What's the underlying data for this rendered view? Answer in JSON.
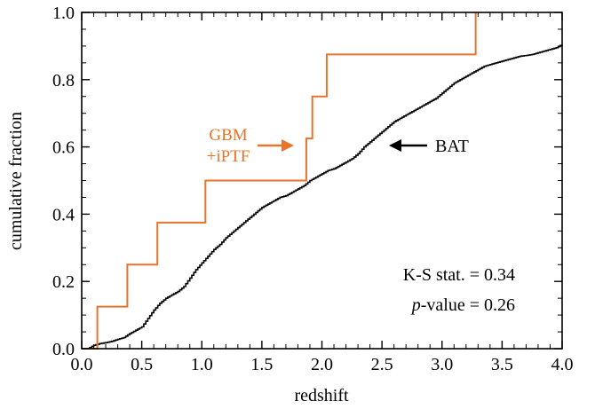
{
  "chart_data": {
    "type": "line",
    "title": "",
    "xlabel": "redshift",
    "ylabel": "cumulative fraction",
    "xlim": [
      0.0,
      4.0
    ],
    "ylim": [
      0.0,
      1.0
    ],
    "x_ticks": [
      "0.0",
      "0.5",
      "1.0",
      "1.5",
      "2.0",
      "2.5",
      "3.0",
      "3.5",
      "4.0"
    ],
    "y_ticks": [
      "0.0",
      "0.2",
      "0.4",
      "0.6",
      "0.8",
      "1.0"
    ],
    "grid": false,
    "series": [
      {
        "name": "BAT",
        "color": "#000000",
        "style": "step",
        "points": [
          [
            0.05,
            0.0
          ],
          [
            0.1,
            0.01
          ],
          [
            0.15,
            0.015
          ],
          [
            0.2,
            0.018
          ],
          [
            0.25,
            0.022
          ],
          [
            0.3,
            0.028
          ],
          [
            0.35,
            0.033
          ],
          [
            0.4,
            0.045
          ],
          [
            0.45,
            0.055
          ],
          [
            0.5,
            0.065
          ],
          [
            0.55,
            0.09
          ],
          [
            0.6,
            0.115
          ],
          [
            0.65,
            0.135
          ],
          [
            0.7,
            0.15
          ],
          [
            0.75,
            0.16
          ],
          [
            0.8,
            0.17
          ],
          [
            0.85,
            0.185
          ],
          [
            0.9,
            0.21
          ],
          [
            0.95,
            0.235
          ],
          [
            1.0,
            0.255
          ],
          [
            1.05,
            0.275
          ],
          [
            1.1,
            0.295
          ],
          [
            1.15,
            0.31
          ],
          [
            1.2,
            0.33
          ],
          [
            1.25,
            0.345
          ],
          [
            1.3,
            0.36
          ],
          [
            1.35,
            0.375
          ],
          [
            1.4,
            0.39
          ],
          [
            1.45,
            0.405
          ],
          [
            1.5,
            0.42
          ],
          [
            1.55,
            0.43
          ],
          [
            1.6,
            0.44
          ],
          [
            1.65,
            0.45
          ],
          [
            1.7,
            0.455
          ],
          [
            1.75,
            0.465
          ],
          [
            1.8,
            0.475
          ],
          [
            1.85,
            0.485
          ],
          [
            1.9,
            0.5
          ],
          [
            1.95,
            0.51
          ],
          [
            2.0,
            0.52
          ],
          [
            2.05,
            0.53
          ],
          [
            2.1,
            0.535
          ],
          [
            2.15,
            0.545
          ],
          [
            2.2,
            0.555
          ],
          [
            2.25,
            0.565
          ],
          [
            2.3,
            0.58
          ],
          [
            2.35,
            0.6
          ],
          [
            2.4,
            0.615
          ],
          [
            2.45,
            0.63
          ],
          [
            2.5,
            0.645
          ],
          [
            2.55,
            0.66
          ],
          [
            2.6,
            0.675
          ],
          [
            2.65,
            0.685
          ],
          [
            2.7,
            0.695
          ],
          [
            2.75,
            0.705
          ],
          [
            2.8,
            0.715
          ],
          [
            2.85,
            0.725
          ],
          [
            2.9,
            0.735
          ],
          [
            2.95,
            0.745
          ],
          [
            3.0,
            0.76
          ],
          [
            3.05,
            0.775
          ],
          [
            3.1,
            0.79
          ],
          [
            3.15,
            0.8
          ],
          [
            3.2,
            0.81
          ],
          [
            3.25,
            0.82
          ],
          [
            3.3,
            0.83
          ],
          [
            3.35,
            0.84
          ],
          [
            3.4,
            0.845
          ],
          [
            3.45,
            0.85
          ],
          [
            3.5,
            0.855
          ],
          [
            3.55,
            0.86
          ],
          [
            3.6,
            0.865
          ],
          [
            3.65,
            0.87
          ],
          [
            3.7,
            0.872
          ],
          [
            3.75,
            0.875
          ],
          [
            3.8,
            0.88
          ],
          [
            3.85,
            0.885
          ],
          [
            3.9,
            0.89
          ],
          [
            3.95,
            0.895
          ],
          [
            4.0,
            0.905
          ]
        ]
      },
      {
        "name": "GBM +iPTF",
        "color": "#e8732a",
        "style": "step",
        "points": [
          [
            0.0,
            0.0
          ],
          [
            0.13,
            0.0
          ],
          [
            0.13,
            0.125
          ],
          [
            0.38,
            0.125
          ],
          [
            0.38,
            0.25
          ],
          [
            0.63,
            0.25
          ],
          [
            0.63,
            0.375
          ],
          [
            1.03,
            0.375
          ],
          [
            1.03,
            0.5
          ],
          [
            1.87,
            0.5
          ],
          [
            1.87,
            0.625
          ],
          [
            1.92,
            0.625
          ],
          [
            1.92,
            0.75
          ],
          [
            2.04,
            0.75
          ],
          [
            2.04,
            0.875
          ],
          [
            3.28,
            0.875
          ],
          [
            3.28,
            1.0
          ]
        ]
      }
    ],
    "annotations": {
      "gbm_line1": "GBM",
      "gbm_line2": "+iPTF",
      "bat": "BAT",
      "ks_stat": "K-S stat. = 0.34",
      "p_value_italic": "p",
      "p_value_rest": "-value = 0.26"
    }
  }
}
